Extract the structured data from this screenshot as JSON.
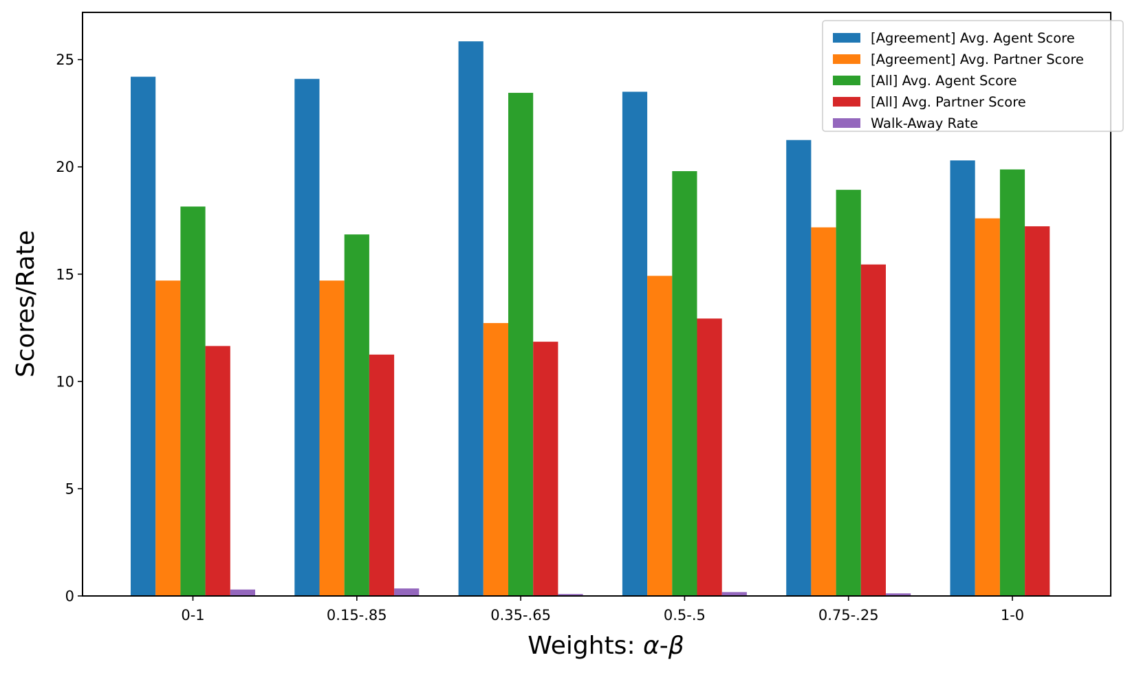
{
  "chart_data": {
    "type": "bar",
    "title": "",
    "xlabel_prefix": "Weights: ",
    "xlabel_alpha": "α",
    "xlabel_dash": "-",
    "xlabel_beta": "β",
    "ylabel": "Scores/Rate",
    "ylim": [
      0,
      27.2
    ],
    "yticks": [
      0,
      5,
      10,
      15,
      20,
      25
    ],
    "grid": false,
    "legend_position": "top-right",
    "categories": [
      "0-1",
      "0.15-.85",
      "0.35-.65",
      "0.5-.5",
      "0.75-.25",
      "1-0"
    ],
    "series": [
      {
        "name": "[Agreement] Avg. Agent Score",
        "color": "#1f77b4",
        "values": [
          24.2,
          24.1,
          25.85,
          23.5,
          21.25,
          20.3
        ]
      },
      {
        "name": "[Agreement] Avg. Partner Score",
        "color": "#ff7f0e",
        "values": [
          14.7,
          14.7,
          12.72,
          14.92,
          17.18,
          17.6
        ]
      },
      {
        "name": "[All] Avg. Agent Score",
        "color": "#2ca02c",
        "values": [
          18.15,
          16.85,
          23.45,
          19.8,
          18.93,
          19.88
        ]
      },
      {
        "name": "[All] Avg. Partner Score",
        "color": "#d62728",
        "values": [
          11.65,
          11.25,
          11.85,
          12.93,
          15.45,
          17.23
        ]
      },
      {
        "name": "Walk-Away Rate",
        "color": "#9467bd",
        "values": [
          0.3,
          0.35,
          0.09,
          0.18,
          0.12,
          0.0
        ]
      }
    ]
  }
}
